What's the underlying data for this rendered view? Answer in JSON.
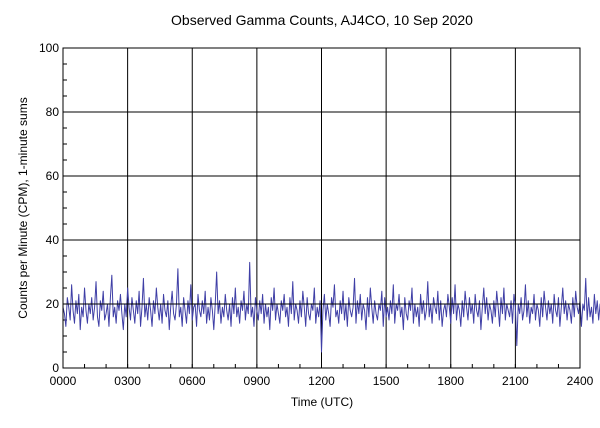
{
  "chart_data": {
    "type": "line",
    "title": "Observed Gamma Counts, AJ4CO, 10 Sep 2020",
    "xlabel": "Time (UTC)",
    "ylabel": "Counts per Minute (CPM), 1-minute sums",
    "x_range_minutes": [
      0,
      1440
    ],
    "ylim": [
      0,
      100
    ],
    "x_ticks": [
      {
        "label": "0000",
        "minute": 0
      },
      {
        "label": "0300",
        "minute": 180
      },
      {
        "label": "0600",
        "minute": 360
      },
      {
        "label": "0900",
        "minute": 540
      },
      {
        "label": "1200",
        "minute": 720
      },
      {
        "label": "1500",
        "minute": 900
      },
      {
        "label": "1800",
        "minute": 1080
      },
      {
        "label": "2100",
        "minute": 1260
      },
      {
        "label": "2400",
        "minute": 1440
      }
    ],
    "y_ticks": [
      0,
      20,
      40,
      60,
      80,
      100
    ],
    "grid": true,
    "legend": "none",
    "reference_line": {
      "y": 20,
      "color": "#000000"
    },
    "series": [
      {
        "color": "#3f3fa6",
        "sample_interval_minutes": 4,
        "values": [
          19,
          17,
          13,
          22,
          19,
          15,
          26,
          18,
          14,
          21,
          17,
          23,
          12,
          19,
          16,
          25,
          18,
          14,
          20,
          17,
          22,
          15,
          19,
          27,
          16,
          13,
          21,
          18,
          24,
          15,
          17,
          20,
          13,
          22,
          29,
          16,
          19,
          14,
          21,
          18,
          23,
          17,
          12,
          20,
          16,
          25,
          19,
          15,
          22,
          18,
          14,
          21,
          17,
          24,
          13,
          19,
          28,
          16,
          20,
          15,
          22,
          18,
          13,
          21,
          17,
          25,
          19,
          15,
          20,
          14,
          23,
          18,
          16,
          21,
          12,
          19,
          24,
          17,
          15,
          20,
          31,
          16,
          19,
          13,
          22,
          18,
          14,
          21,
          17,
          26,
          15,
          19,
          20,
          13,
          23,
          18,
          16,
          21,
          17,
          24,
          14,
          19,
          15,
          22,
          18,
          12,
          20,
          30,
          17,
          21,
          14,
          19,
          16,
          23,
          18,
          15,
          20,
          13,
          22,
          17,
          25,
          16,
          19,
          14,
          21,
          18,
          24,
          15,
          20,
          17,
          33,
          16,
          19,
          13,
          22,
          18,
          15,
          21,
          17,
          23,
          14,
          20,
          16,
          19,
          12,
          22,
          18,
          25,
          15,
          20,
          17,
          14,
          21,
          18,
          23,
          16,
          19,
          13,
          22,
          17,
          27,
          15,
          20,
          18,
          14,
          21,
          16,
          24,
          19,
          13,
          22,
          17,
          15,
          20,
          18,
          25,
          14,
          19,
          16,
          21,
          5,
          18,
          23,
          15,
          20,
          17,
          13,
          22,
          19,
          26,
          16,
          18,
          14,
          21,
          17,
          24,
          15,
          20,
          13,
          22,
          18,
          16,
          19,
          28,
          14,
          21,
          17,
          23,
          15,
          20,
          18,
          12,
          22,
          16,
          25,
          19,
          14,
          21,
          17,
          15,
          20,
          18,
          24,
          13,
          22,
          16,
          19,
          15,
          21,
          17,
          26,
          14,
          20,
          18,
          23,
          16,
          19,
          12,
          22,
          17,
          15,
          21,
          18,
          25,
          14,
          20,
          16,
          19,
          13,
          23,
          17,
          21,
          15,
          18,
          27,
          16,
          20,
          14,
          22,
          19,
          17,
          24,
          15,
          21,
          13,
          18,
          20,
          16,
          23,
          19,
          14,
          22,
          17,
          26,
          15,
          20,
          18,
          13,
          21,
          16,
          24,
          19,
          15,
          22,
          17,
          20,
          14,
          23,
          18,
          16,
          21,
          12,
          19,
          25,
          17,
          22,
          15,
          20,
          18,
          14,
          21,
          16,
          24,
          19,
          13,
          22,
          17,
          25,
          15,
          20,
          18,
          16,
          21,
          14,
          23,
          19,
          7,
          20,
          17,
          22,
          15,
          18,
          26,
          16,
          21,
          14,
          19,
          17,
          23,
          15,
          20,
          18,
          13,
          22,
          16,
          24,
          19,
          15,
          21,
          17,
          20,
          14,
          23,
          18,
          16,
          22,
          13,
          19,
          25,
          17,
          21,
          15,
          20,
          18,
          14,
          22,
          16,
          24,
          19,
          17,
          21,
          13,
          20,
          18,
          28,
          15,
          22,
          16,
          19,
          14,
          23,
          17,
          21,
          15,
          20,
          18,
          16,
          22,
          13,
          24,
          19,
          17,
          21,
          15,
          20,
          18
        ]
      }
    ]
  }
}
